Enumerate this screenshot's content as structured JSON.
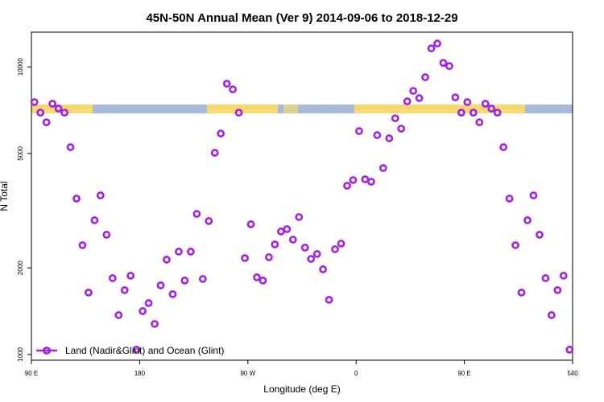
{
  "chart_data": {
    "type": "scatter",
    "title": "45N-50N Annual Mean (Ver 9)   2014-09-06 to 2018-12-29",
    "x_label": "Longitude (deg E)",
    "y_label": "N Total",
    "log_y": true,
    "legend": "bottomleft",
    "xlim": [
      90,
      540
    ],
    "xticks": [
      {
        "value": 90,
        "label": "90 E"
      },
      180,
      {
        "value": 270,
        "label": "90 W"
      },
      {
        "value": 360,
        "label": "0"
      },
      {
        "value": 450,
        "label": "90 E"
      },
      540
    ],
    "ylim": [
      955,
      13200
    ],
    "yticks": [
      1000,
      2000,
      5000,
      10000
    ],
    "x": [
      92.5,
      97.5,
      102.5,
      107.5,
      112.5,
      117.5,
      122.5,
      127.5,
      132.5,
      137.5,
      142.5,
      147.5,
      152.5,
      157.5,
      162.5,
      167.5,
      172.5,
      177.5,
      182.5,
      187.5,
      192.5,
      197.5,
      202.5,
      207.5,
      212.5,
      217.5,
      222.5,
      227.5,
      232.5,
      237.5,
      242.5,
      247.5,
      252.5,
      257.5,
      262.5,
      267.5,
      272.5,
      277.5,
      282.5,
      287.5,
      292.5,
      297.5,
      302.5,
      307.5,
      312.5,
      317.5,
      322.5,
      327.5,
      332.5,
      337.5,
      342.5,
      347.5,
      352.5,
      357.5,
      362.5,
      367.5,
      372.5,
      377.5,
      382.5,
      387.5,
      392.5,
      397.5,
      402.5,
      407.5,
      412.5,
      417.5,
      422.5,
      427.5,
      432.5,
      437.5,
      442.5,
      447.5,
      452.5,
      457.5,
      462.5,
      467.5,
      472.5,
      477.5,
      482.5,
      487.5,
      492.5,
      497.5,
      502.5,
      507.5,
      512.5,
      517.5,
      522.5,
      527.5,
      532.5,
      537.5
    ],
    "series": [
      {
        "name": "Land (Nadir&Glint) and Ocean (Glint)",
        "color": "#a020f0",
        "values": [
          7540,
          6930,
          6415,
          7440,
          7160,
          6930,
          5255,
          3483,
          2398,
          1641,
          2928,
          3573,
          2608,
          1842,
          1370,
          1673,
          1878,
          1039,
          1415,
          1509,
          1277,
          1739,
          2136,
          1620,
          2278,
          1807,
          2278,
          3081,
          1830,
          2909,
          5025,
          5863,
          8735,
          8350,
          6930,
          2163,
          2835,
          1854,
          1807,
          2178,
          2413,
          2676,
          2727,
          2507,
          3004,
          2352,
          2149,
          2235,
          1977,
          1549,
          2322,
          2429,
          3860,
          4038,
          5977,
          4064,
          3987,
          5788,
          4447,
          5641,
          6625,
          6095,
          7585,
          8245,
          7785,
          9200,
          11590,
          12050,
          10320,
          10060,
          7830,
          6930,
          7540,
          6930,
          6415,
          7440,
          7160,
          6930,
          5255,
          3483,
          2398,
          1641,
          2928,
          3573,
          2608,
          1842,
          1370,
          1673,
          1878,
          1039
        ]
      }
    ]
  }
}
